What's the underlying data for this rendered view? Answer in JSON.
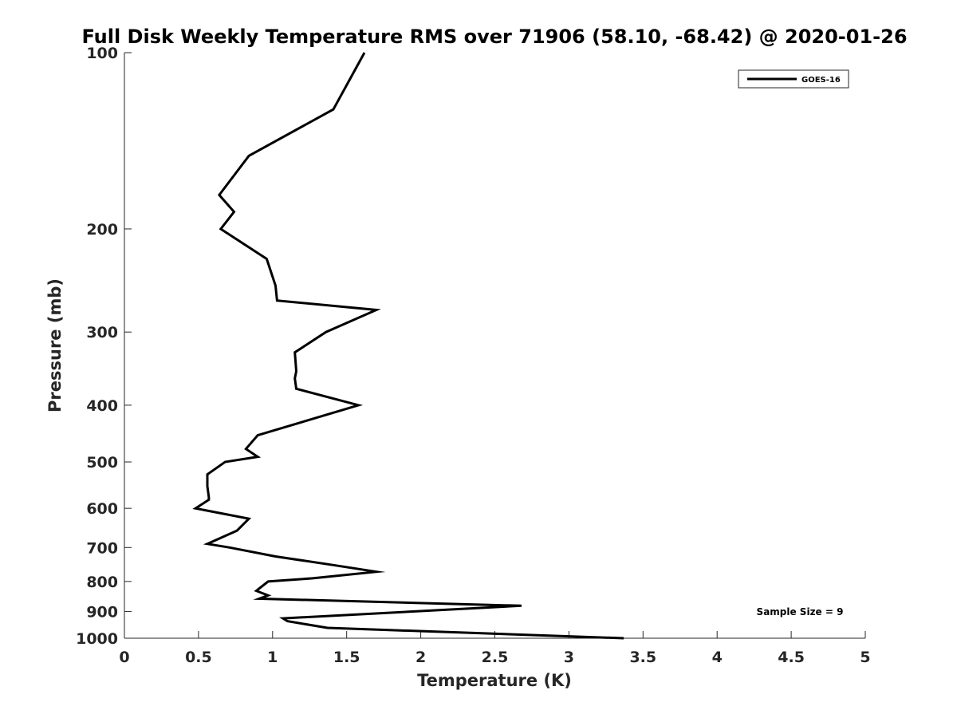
{
  "chart_data": {
    "type": "line",
    "title": "Full Disk Weekly Temperature RMS over 71906 (58.10, -68.42) @ 2020-01-26",
    "xlabel": "Temperature (K)",
    "ylabel": "Pressure (mb)",
    "xlim": [
      0,
      5
    ],
    "ylim": [
      100,
      1000
    ],
    "yscale": "log",
    "y_reversed": true,
    "x_ticks": [
      "0",
      "0.5",
      "1",
      "1.5",
      "2",
      "2.5",
      "3",
      "3.5",
      "4",
      "4.5",
      "5"
    ],
    "y_ticks": [
      "100",
      "200",
      "300",
      "400",
      "500",
      "600",
      "700",
      "800",
      "900",
      "1000"
    ],
    "grid": false,
    "legend_position": "top-right",
    "annotation": "Sample Size = 9",
    "series": [
      {
        "name": "GOES-16",
        "color": "#000000",
        "points": [
          [
            1.62,
            100
          ],
          [
            1.41,
            125
          ],
          [
            0.84,
            150
          ],
          [
            0.64,
            175
          ],
          [
            0.74,
            187
          ],
          [
            0.65,
            200
          ],
          [
            0.96,
            225
          ],
          [
            1.02,
            250
          ],
          [
            1.03,
            265
          ],
          [
            1.7,
            275
          ],
          [
            1.36,
            300
          ],
          [
            1.15,
            325
          ],
          [
            1.16,
            350
          ],
          [
            1.15,
            360
          ],
          [
            1.16,
            375
          ],
          [
            1.58,
            400
          ],
          [
            0.9,
            450
          ],
          [
            0.82,
            475
          ],
          [
            0.9,
            490
          ],
          [
            0.68,
            500
          ],
          [
            0.56,
            525
          ],
          [
            0.56,
            550
          ],
          [
            0.57,
            575
          ],
          [
            0.57,
            580
          ],
          [
            0.48,
            600
          ],
          [
            0.84,
            625
          ],
          [
            0.76,
            655
          ],
          [
            0.56,
            690
          ],
          [
            0.71,
            700
          ],
          [
            1.02,
            725
          ],
          [
            1.41,
            750
          ],
          [
            1.7,
            770
          ],
          [
            1.27,
            790
          ],
          [
            0.97,
            800
          ],
          [
            0.89,
            830
          ],
          [
            0.97,
            845
          ],
          [
            0.91,
            856
          ],
          [
            2.68,
            880
          ],
          [
            1.07,
            925
          ],
          [
            1.1,
            935
          ],
          [
            1.37,
            960
          ],
          [
            3.37,
            1000
          ]
        ]
      }
    ]
  }
}
